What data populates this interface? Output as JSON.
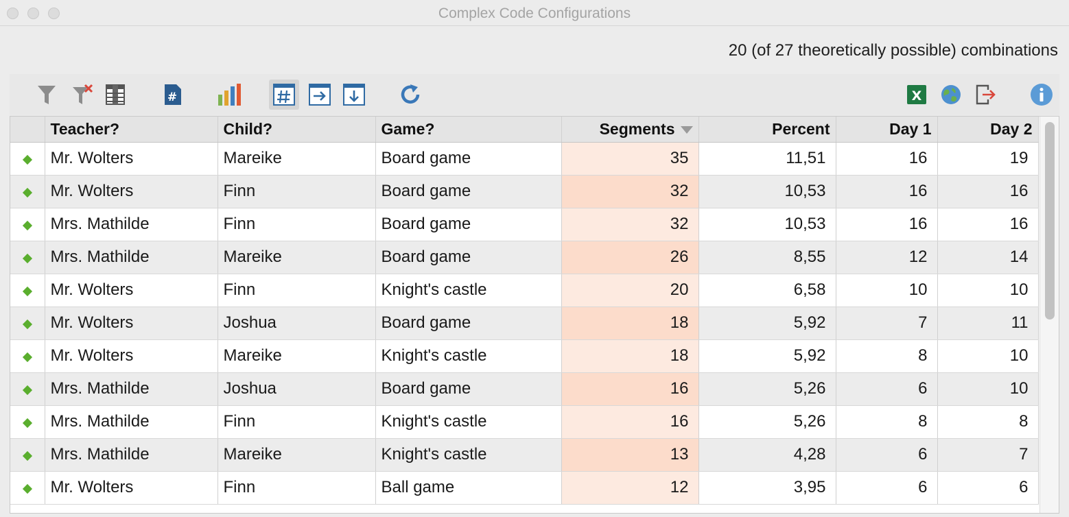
{
  "window": {
    "title": "Complex Code Configurations"
  },
  "summary": "20 (of 27 theoretically possible) combinations",
  "toolbar": {
    "items": [
      {
        "name": "filter-icon"
      },
      {
        "name": "clear-filter-icon"
      },
      {
        "name": "table-columns-icon"
      },
      {
        "name": "document-hash-icon"
      },
      {
        "name": "bar-chart-icon"
      },
      {
        "name": "table-hash-icon",
        "active": true
      },
      {
        "name": "arrow-right-icon"
      },
      {
        "name": "arrow-down-icon"
      },
      {
        "name": "refresh-icon"
      },
      {
        "name": "excel-export-icon"
      },
      {
        "name": "web-export-icon"
      },
      {
        "name": "export-icon"
      },
      {
        "name": "info-icon"
      }
    ],
    "excel_letter": "X"
  },
  "table": {
    "columns": [
      "",
      "Teacher?",
      "Child?",
      "Game?",
      "Segments",
      "Percent",
      "Day 1",
      "Day 2"
    ],
    "sorted_column": "Segments",
    "rows": [
      [
        "Mr. Wolters",
        "Mareike",
        "Board game",
        "35",
        "11,51",
        "16",
        "19"
      ],
      [
        "Mr. Wolters",
        "Finn",
        "Board game",
        "32",
        "10,53",
        "16",
        "16"
      ],
      [
        "Mrs. Mathilde",
        "Finn",
        "Board game",
        "32",
        "10,53",
        "16",
        "16"
      ],
      [
        "Mrs. Mathilde",
        "Mareike",
        "Board game",
        "26",
        "8,55",
        "12",
        "14"
      ],
      [
        "Mr. Wolters",
        "Finn",
        "Knight's castle",
        "20",
        "6,58",
        "10",
        "10"
      ],
      [
        "Mr. Wolters",
        "Joshua",
        "Board game",
        "18",
        "5,92",
        "7",
        "11"
      ],
      [
        "Mr. Wolters",
        "Mareike",
        "Knight's castle",
        "18",
        "5,92",
        "8",
        "10"
      ],
      [
        "Mrs. Mathilde",
        "Joshua",
        "Board game",
        "16",
        "5,26",
        "6",
        "10"
      ],
      [
        "Mrs. Mathilde",
        "Finn",
        "Knight's castle",
        "16",
        "5,26",
        "8",
        "8"
      ],
      [
        "Mrs. Mathilde",
        "Mareike",
        "Knight's castle",
        "13",
        "4,28",
        "6",
        "7"
      ],
      [
        "Mr. Wolters",
        "Finn",
        "Ball game",
        "12",
        "3,95",
        "6",
        "6"
      ]
    ]
  },
  "colors": {
    "accent_blue": "#2f6aa3",
    "marker_green": "#5aae2e",
    "segment_highlight": "#fdeae0",
    "excel_green": "#1f7a43"
  }
}
